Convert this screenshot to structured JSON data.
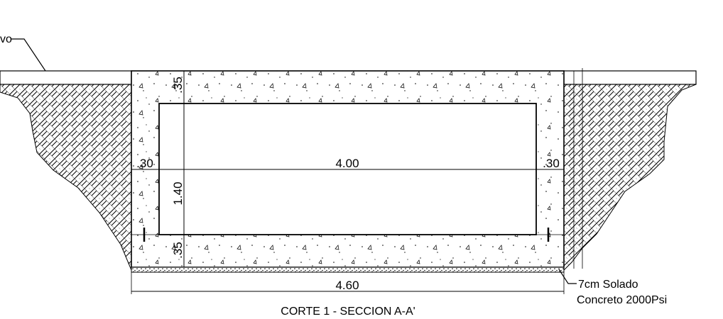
{
  "drawing": {
    "title": "CORTE 1 - SECCION A-A'",
    "top_label_fragment": "vo",
    "dimensions": {
      "clear_width": "4.00",
      "total_width": "4.60",
      "left_wall": ".30",
      "right_wall": ".30",
      "top_slab": ".35",
      "bottom_slab": ".35",
      "clear_height": "1.40"
    },
    "base_note": {
      "line1": "7cm Solado",
      "line2": "Concreto 2000Psi"
    }
  }
}
